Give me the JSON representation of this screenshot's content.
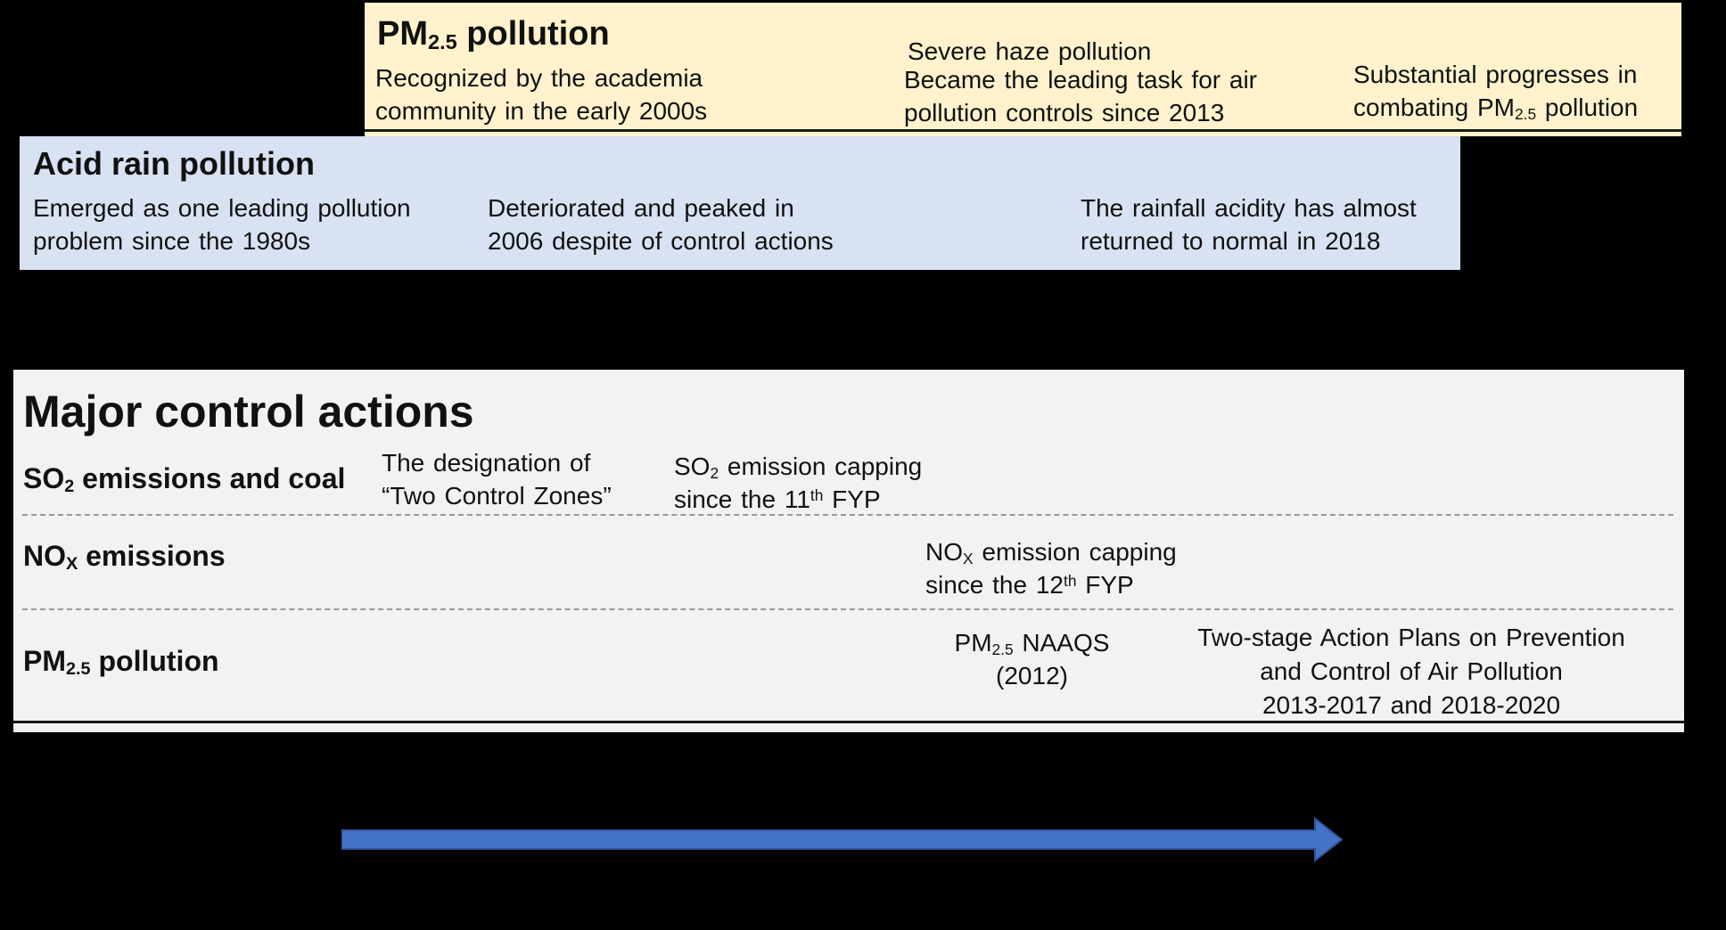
{
  "colors": {
    "background": "#000000",
    "pm_panel": "#FFF2CC",
    "acid_panel": "#D9E2F3",
    "actions_panel": "#F2F2F2",
    "arrow_fill": "#4472C4",
    "arrow_edge": "#2F5597",
    "divider": "#999999",
    "edge_line": "#1A1A1A"
  },
  "pm_box": {
    "title": [
      {
        "t": "PM"
      },
      {
        "s": "sub",
        "t": "2.5"
      },
      {
        "t": " pollution"
      }
    ],
    "recognized": "Recognized by the academia\ncommunity in the early 2000s",
    "severe_haze": "Severe haze pollution",
    "leading_task": "Became the leading task for air\npollution controls since 2013",
    "progress": [
      {
        "t": "Substantial progresses in\ncombating PM"
      },
      {
        "s": "sub",
        "t": "2.5"
      },
      {
        "t": " pollution"
      }
    ]
  },
  "acid_box": {
    "title": "Acid rain pollution",
    "emerged": "Emerged as one leading pollution\nproblem since the 1980s",
    "peaked": "Deteriorated and peaked in\n2006 despite of control actions",
    "returned_normal": "The rainfall acidity has almost\nreturned to normal in 2018"
  },
  "actions_box": {
    "title": "Major control actions",
    "row_so2": {
      "label": [
        {
          "t": "SO"
        },
        {
          "s": "sub",
          "t": "2"
        },
        {
          "t": " emissions and coal"
        }
      ],
      "two_control_zones": "The designation of\n“Two Control Zones”",
      "capping": [
        {
          "t": "SO"
        },
        {
          "s": "sub",
          "t": "2"
        },
        {
          "t": " emission capping\nsince the 11"
        },
        {
          "s": "sup",
          "t": "th"
        },
        {
          "t": " FYP"
        }
      ]
    },
    "row_nox": {
      "label": [
        {
          "t": "NO"
        },
        {
          "s": "sub",
          "t": "X"
        },
        {
          "t": " emissions"
        }
      ],
      "capping": [
        {
          "t": "NO"
        },
        {
          "s": "sub",
          "t": "X"
        },
        {
          "t": " emission capping\nsince the 12"
        },
        {
          "s": "sup",
          "t": "th"
        },
        {
          "t": " FYP"
        }
      ]
    },
    "row_pm25": {
      "label": [
        {
          "t": "PM"
        },
        {
          "s": "sub",
          "t": "2.5"
        },
        {
          "t": " pollution"
        }
      ],
      "naaqs": [
        {
          "t": "PM"
        },
        {
          "s": "sub",
          "t": "2.5"
        },
        {
          "t": " NAAQS\n(2012)"
        }
      ],
      "action_plans": "Two-stage Action Plans on Prevention\nand Control of Air Pollution\n2013-2017 and 2018-2020"
    }
  }
}
